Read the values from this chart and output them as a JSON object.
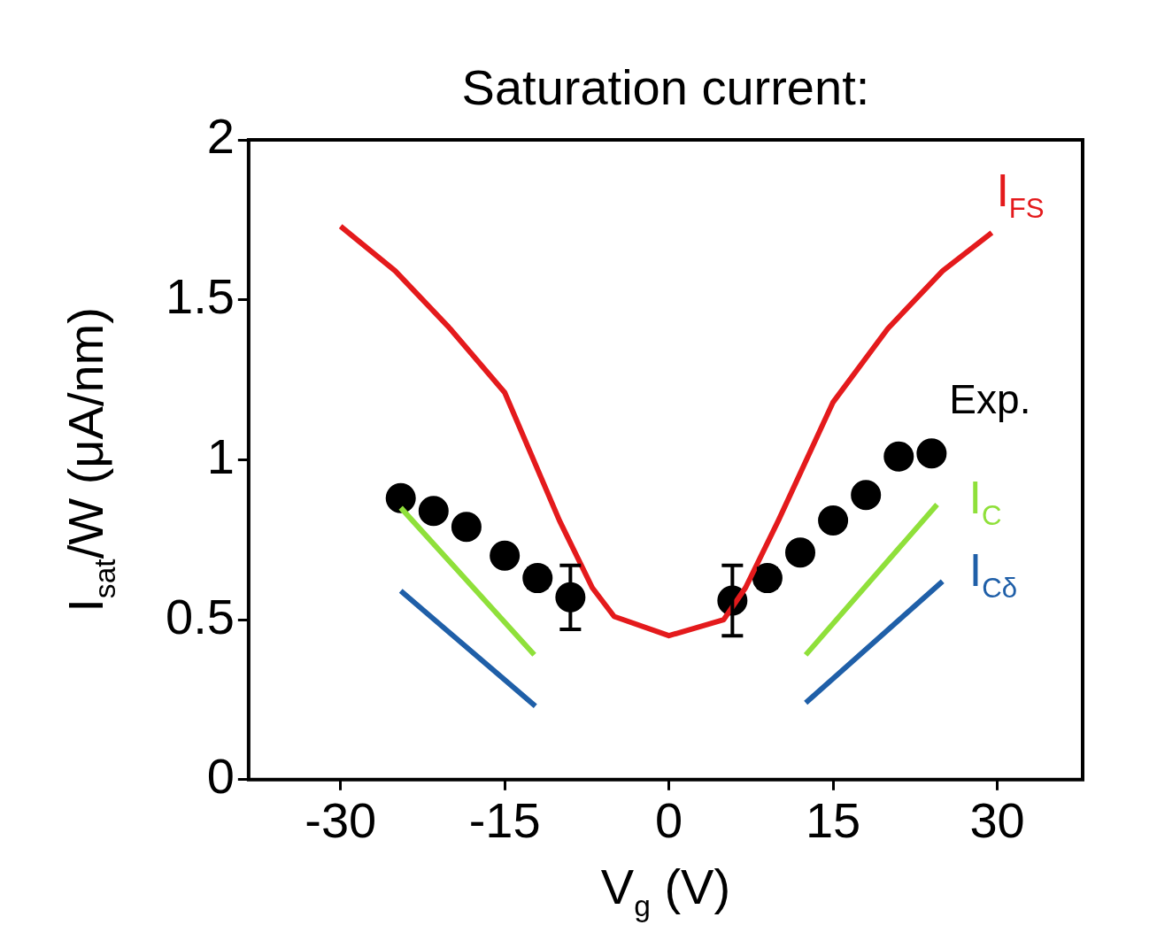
{
  "chart_data": {
    "type": "line",
    "title": "Saturation current:",
    "xlabel": "V$_{g}$ (V)",
    "ylabel": "I$_{sat}$/W (μA/nm)",
    "xlim": [
      -38.4,
      37.8
    ],
    "ylim": [
      0,
      2
    ],
    "xticks": [
      -30,
      -15,
      0,
      15,
      30
    ],
    "yticks": [
      0,
      0.5,
      1,
      1.5,
      2
    ],
    "grid": false,
    "legend": false,
    "series": [
      {
        "name": "I$_{FS}$",
        "type": "line",
        "color": "#e41a1c",
        "marker": "none",
        "x": [
          -30,
          -25,
          -20,
          -15,
          -10,
          -7,
          -5,
          0,
          5,
          7,
          10,
          15,
          20,
          25,
          29.5
        ],
        "values": [
          1.73,
          1.59,
          1.41,
          1.21,
          0.81,
          0.6,
          0.51,
          0.45,
          0.5,
          0.6,
          0.81,
          1.18,
          1.41,
          1.59,
          1.71
        ]
      },
      {
        "name": "Exp.",
        "type": "scatter",
        "color": "#000000",
        "marker": "circle",
        "x": [
          -24.5,
          -21.5,
          -18.5,
          -15,
          -12,
          -9,
          5.8,
          9,
          12,
          15,
          18,
          21,
          24
        ],
        "values": [
          0.88,
          0.84,
          0.79,
          0.7,
          0.63,
          0.57,
          0.56,
          0.63,
          0.71,
          0.81,
          0.89,
          1.01,
          1.02
        ],
        "errors": [
          null,
          null,
          null,
          null,
          0.03,
          0.1,
          0.11,
          0.03,
          null,
          null,
          null,
          null,
          null
        ]
      },
      {
        "name": "I$_{C}$",
        "type": "line",
        "color": "#8fe03a",
        "marker": "none",
        "x": [
          -24.5,
          -12.3,
          0,
          12.5,
          24.5
        ],
        "values": [
          0.85,
          0.39,
          null,
          0.39,
          0.86
        ]
      },
      {
        "name": "I$_{Cδ}$",
        "type": "line",
        "color": "#1f5fa8",
        "marker": "none",
        "x": [
          -24.5,
          -12.2,
          0,
          12.5,
          25
        ],
        "values": [
          0.59,
          0.23,
          null,
          0.24,
          0.62
        ]
      }
    ]
  }
}
